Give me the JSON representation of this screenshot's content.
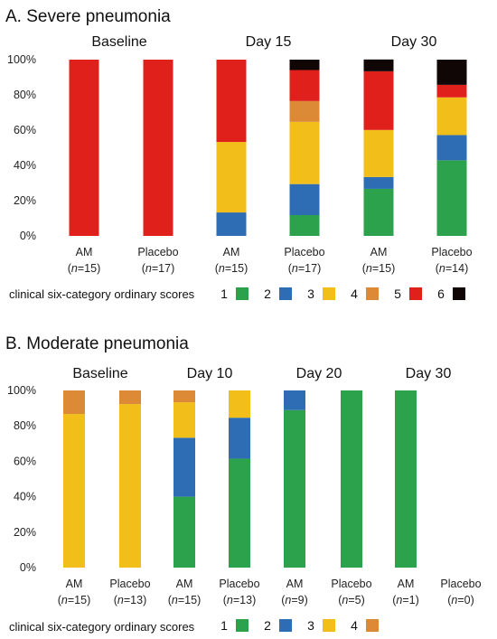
{
  "colors": {
    "1": "#2ca24c",
    "2": "#2e6db4",
    "3": "#f2be1a",
    "4": "#dc8a36",
    "5": "#e0211b",
    "6": "#110606"
  },
  "chart_data": [
    {
      "type": "bar",
      "stacked": true,
      "panel_title": "A. Severe pneumonia",
      "group_labels": [
        "Baseline",
        "Day 15",
        "Day 30"
      ],
      "yticks": [
        "0%",
        "20%",
        "40%",
        "60%",
        "80%",
        "100%"
      ],
      "ylim": [
        0,
        100
      ],
      "grid": true,
      "categories": [
        {
          "name": "AM",
          "n": "15"
        },
        {
          "name": "Placebo",
          "n": "17"
        },
        {
          "name": "AM",
          "n": "15"
        },
        {
          "name": "Placebo",
          "n": "17"
        },
        {
          "name": "AM",
          "n": "15"
        },
        {
          "name": "Placebo",
          "n": "14"
        }
      ],
      "series": [
        {
          "name": "1",
          "values": [
            0,
            0,
            0,
            11.8,
            26.7,
            42.9
          ]
        },
        {
          "name": "2",
          "values": [
            0,
            0,
            13.3,
            17.6,
            6.7,
            14.3
          ]
        },
        {
          "name": "3",
          "values": [
            0,
            0,
            40.0,
            35.3,
            26.7,
            21.4
          ]
        },
        {
          "name": "4",
          "values": [
            0,
            0,
            0,
            11.8,
            0,
            0
          ]
        },
        {
          "name": "5",
          "values": [
            100,
            100,
            46.7,
            17.6,
            33.3,
            7.1
          ]
        },
        {
          "name": "6",
          "values": [
            0,
            0,
            0,
            5.9,
            6.7,
            14.3
          ]
        }
      ],
      "legend_title": "clinical six-category ordinary scores",
      "legend_items": [
        "1",
        "2",
        "3",
        "4",
        "5",
        "6"
      ]
    },
    {
      "type": "bar",
      "stacked": true,
      "panel_title": "B. Moderate pneumonia",
      "group_labels": [
        "Baseline",
        "Day 10",
        "Day 20",
        "Day 30"
      ],
      "yticks": [
        "0%",
        "20%",
        "40%",
        "60%",
        "80%",
        "100%"
      ],
      "ylim": [
        0,
        100
      ],
      "grid": true,
      "categories": [
        {
          "name": "AM",
          "n": "15"
        },
        {
          "name": "Placebo",
          "n": "13"
        },
        {
          "name": "AM",
          "n": "15"
        },
        {
          "name": "Placebo",
          "n": "13"
        },
        {
          "name": "AM",
          "n": "9"
        },
        {
          "name": "Placebo",
          "n": "5"
        },
        {
          "name": "AM",
          "n": "1"
        },
        {
          "name": "Placebo",
          "n": "0"
        }
      ],
      "series": [
        {
          "name": "1",
          "values": [
            0,
            0,
            40.0,
            61.5,
            88.9,
            100,
            100,
            0
          ]
        },
        {
          "name": "2",
          "values": [
            0,
            0,
            33.3,
            23.1,
            11.1,
            0,
            0,
            0
          ]
        },
        {
          "name": "3",
          "values": [
            86.7,
            92.3,
            20.0,
            15.4,
            0,
            0,
            0,
            0
          ]
        },
        {
          "name": "4",
          "values": [
            13.3,
            7.7,
            6.7,
            0,
            0,
            0,
            0,
            0
          ]
        }
      ],
      "legend_title": "clinical six-category ordinary scores",
      "legend_items": [
        "1",
        "2",
        "3",
        "4"
      ]
    }
  ]
}
